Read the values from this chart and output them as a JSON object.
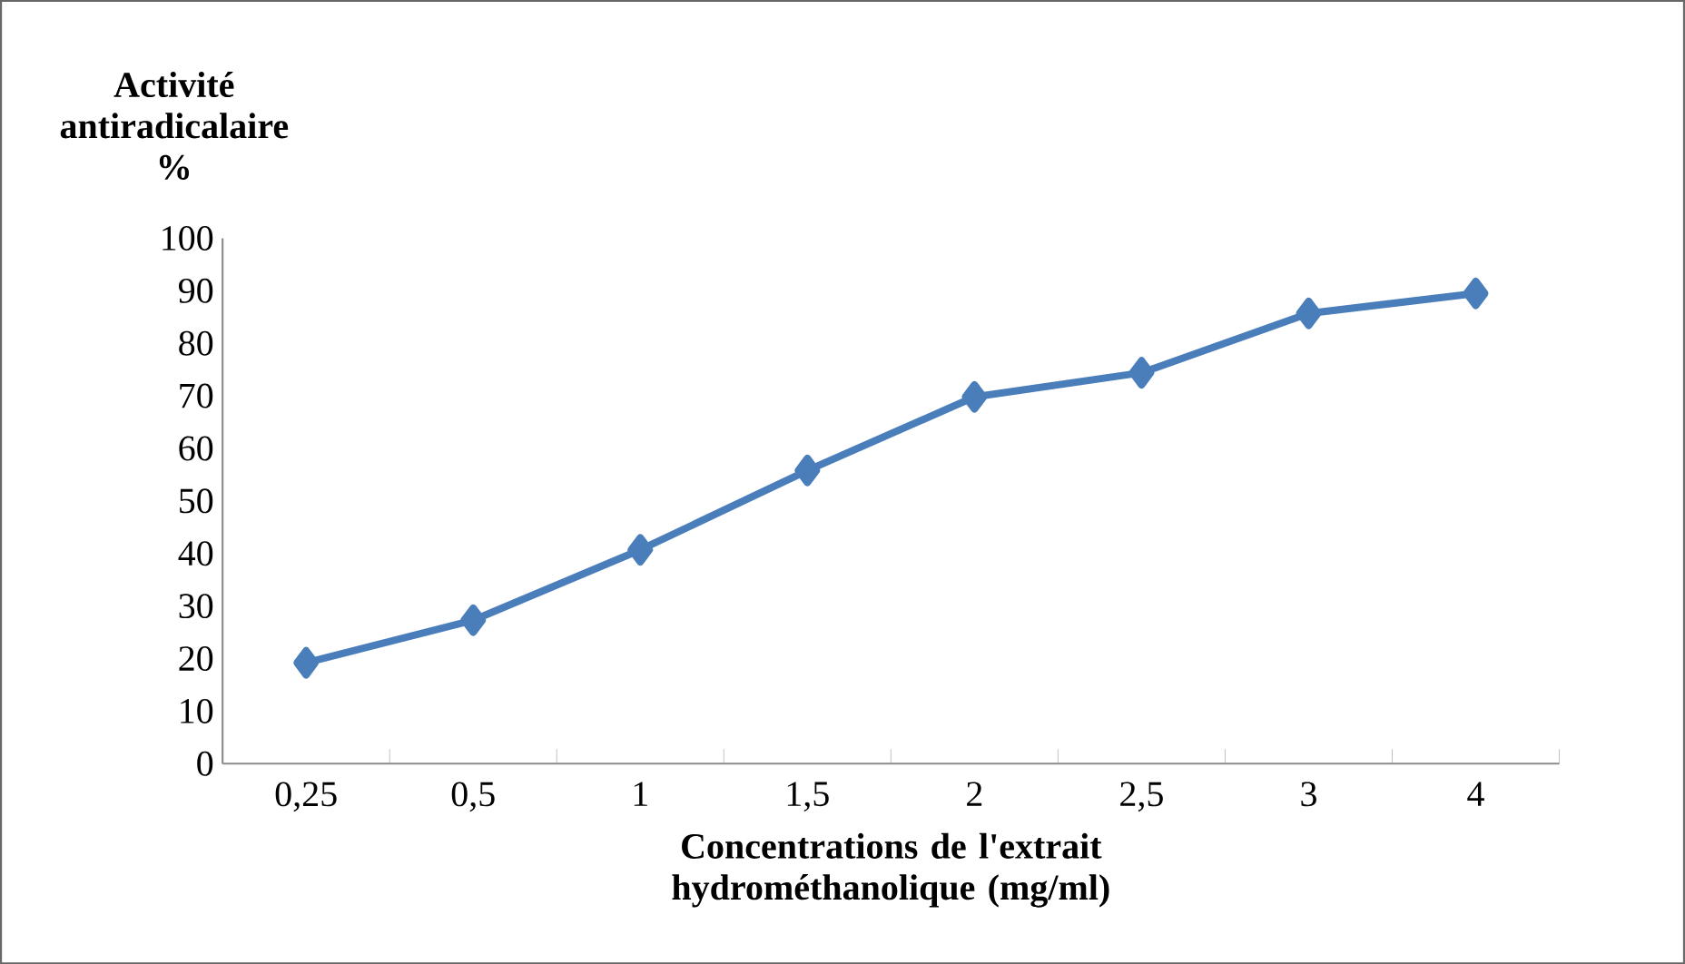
{
  "chart_data": {
    "type": "line",
    "ylabel": "**Activité antiradicalaire %**",
    "xlabel": "Concentrations de l'extrait hydrométhanolique (mg/ml)",
    "categories": [
      "0,25",
      "0,5",
      "1",
      "1,5",
      "2",
      "2,5",
      "3",
      "4"
    ],
    "series": [
      {
        "color": "#4a7ebb",
        "values": [
          19.2,
          27.3,
          40.7,
          55.8,
          69.8,
          74.4,
          85.7,
          89.5
        ]
      }
    ],
    "ylim": [
      0,
      100
    ],
    "yticks": [
      0,
      10,
      20,
      30,
      40,
      50,
      60,
      70,
      80,
      90,
      100
    ],
    "marker": "diamond",
    "grid": false
  }
}
